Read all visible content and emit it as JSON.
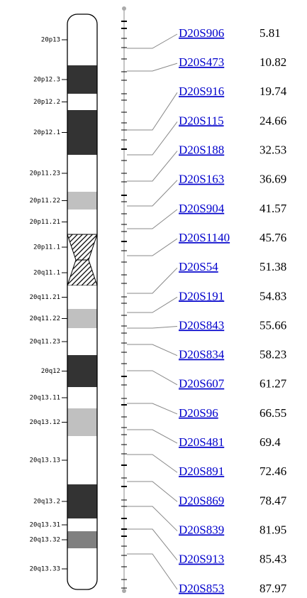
{
  "bands": [
    {
      "label": "20p13",
      "stain": "white"
    },
    {
      "label": "20p12.3",
      "stain": "dark"
    },
    {
      "label": "20p12.2",
      "stain": "white"
    },
    {
      "label": "20p12.1",
      "stain": "dark"
    },
    {
      "label": "20p11.23",
      "stain": "white"
    },
    {
      "label": "20p11.22",
      "stain": "light"
    },
    {
      "label": "20p11.21",
      "stain": "white"
    },
    {
      "label": "20p11.1",
      "stain": "centromere"
    },
    {
      "label": "20q11.1",
      "stain": "centromere"
    },
    {
      "label": "20q11.21",
      "stain": "white"
    },
    {
      "label": "20q11.22",
      "stain": "light"
    },
    {
      "label": "20q11.23",
      "stain": "white"
    },
    {
      "label": "20q12",
      "stain": "dark"
    },
    {
      "label": "20q13.11",
      "stain": "white"
    },
    {
      "label": "20q13.12",
      "stain": "light"
    },
    {
      "label": "20q13.13",
      "stain": "white"
    },
    {
      "label": "20q13.2",
      "stain": "dark"
    },
    {
      "label": "20q13.31",
      "stain": "white"
    },
    {
      "label": "20q13.32",
      "stain": "mid"
    },
    {
      "label": "20q13.33",
      "stain": "white"
    }
  ],
  "markers": [
    {
      "name": "D20S906",
      "position": "5.81"
    },
    {
      "name": "D20S473",
      "position": "10.82"
    },
    {
      "name": "D20S916",
      "position": "19.74"
    },
    {
      "name": "D20S115",
      "position": "24.66"
    },
    {
      "name": "D20S188",
      "position": "32.53"
    },
    {
      "name": "D20S163",
      "position": "36.69"
    },
    {
      "name": "D20S904",
      "position": "41.57"
    },
    {
      "name": "D20S1140",
      "position": "45.76"
    },
    {
      "name": "D20S54",
      "position": "51.38"
    },
    {
      "name": "D20S191",
      "position": "54.83"
    },
    {
      "name": "D20S843",
      "position": "55.66"
    },
    {
      "name": "D20S834",
      "position": "58.23"
    },
    {
      "name": "D20S607",
      "position": "61.27"
    },
    {
      "name": "D20S96",
      "position": "66.55"
    },
    {
      "name": "D20S481",
      "position": "69.4"
    },
    {
      "name": "D20S891",
      "position": "72.46"
    },
    {
      "name": "D20S869",
      "position": "78.47"
    },
    {
      "name": "D20S839",
      "position": "81.95"
    },
    {
      "name": "D20S913",
      "position": "85.43"
    },
    {
      "name": "D20S853",
      "position": "87.97"
    }
  ]
}
